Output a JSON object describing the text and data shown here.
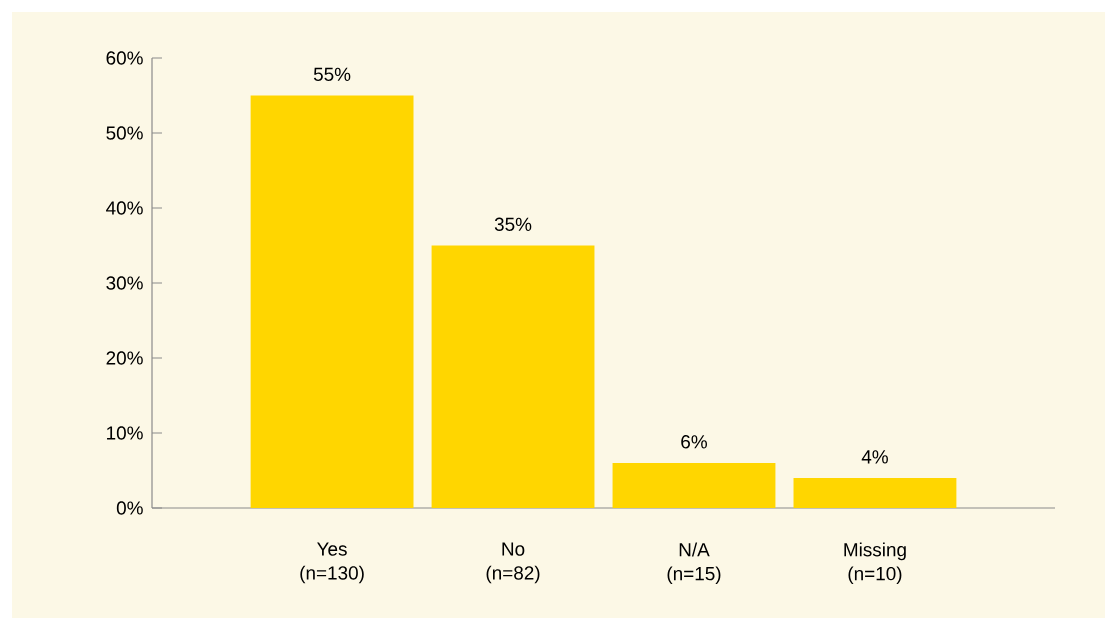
{
  "chart_data": {
    "type": "bar",
    "categories": [
      "Yes (n=130)",
      "No (n=82)",
      "N/A (n=15)",
      "Missing (n=10)"
    ],
    "values": [
      55,
      35,
      6,
      4
    ],
    "value_labels": [
      "55%",
      "35%",
      "6%",
      "4%"
    ],
    "color": "#ffd600",
    "ylim": [
      0,
      60
    ],
    "yticks": [
      {
        "value": 0,
        "label": "0%"
      },
      {
        "value": 10,
        "label": "10%"
      },
      {
        "value": 20,
        "label": "20%"
      },
      {
        "value": 30,
        "label": "30%"
      },
      {
        "value": 40,
        "label": "40%"
      },
      {
        "value": 50,
        "label": "50%"
      },
      {
        "value": 60,
        "label": "60%"
      }
    ]
  }
}
